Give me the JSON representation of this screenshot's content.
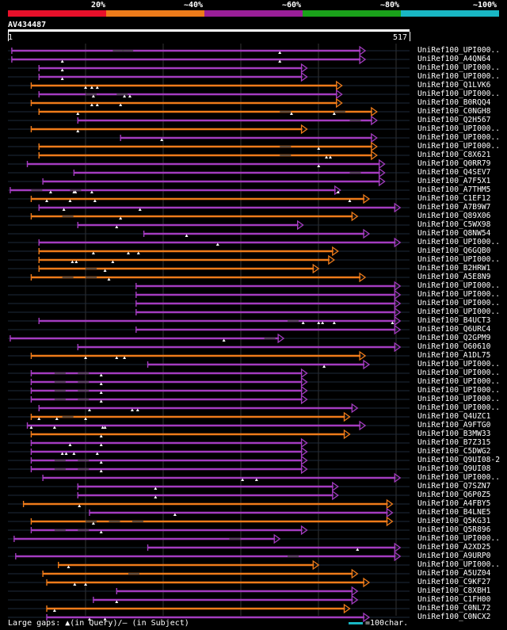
{
  "scale": {
    "labels": [
      "20%",
      "~40%",
      "~60%",
      "~80%",
      "~100%"
    ],
    "colors": [
      "#e8102a",
      "#ee7b1a",
      "#9a1f98",
      "#1aa21a",
      "#19b7c4"
    ]
  },
  "query": {
    "name": "AV434487",
    "start": "1",
    "end": "517",
    "length": 517
  },
  "colors": {
    "orange": "#ee7b1a",
    "purple": "#a43cc0",
    "gap_line": "#444444"
  },
  "hits": [
    {
      "label": "UniRef100_UPI000..",
      "start": 5,
      "end": 460,
      "color": "purple",
      "gaps": [
        135,
        147
      ],
      "marks": [
        350
      ]
    },
    {
      "label": "UniRef100_A4QN64",
      "start": 5,
      "end": 460,
      "color": "purple",
      "gaps": [],
      "marks": [
        70,
        350
      ]
    },
    {
      "label": "UniRef100_UPI000..",
      "start": 40,
      "end": 385,
      "color": "purple",
      "gaps": [],
      "marks": [
        70
      ]
    },
    {
      "label": "UniRef100_UPI000..",
      "start": 40,
      "end": 385,
      "color": "purple",
      "gaps": [],
      "marks": [
        70
      ]
    },
    {
      "label": "UniRef100_Q1LVK6",
      "start": 30,
      "end": 430,
      "color": "orange",
      "gaps": [],
      "marks": [
        100,
        108,
        115
      ]
    },
    {
      "label": "UniRef100_UPI000..",
      "start": 40,
      "end": 430,
      "color": "purple",
      "gaps": [
        100,
        140
      ],
      "marks": [
        110,
        150,
        157
      ]
    },
    {
      "label": "UniRef100_B0RQQ4",
      "start": 30,
      "end": 430,
      "color": "orange",
      "gaps": [],
      "marks": [
        108,
        115,
        145
      ]
    },
    {
      "label": "UniRef100_C0NGH8",
      "start": 40,
      "end": 475,
      "color": "orange",
      "gaps": [
        350,
        420
      ],
      "marks": [
        90,
        365,
        420
      ]
    },
    {
      "label": "UniRef100_Q2H567",
      "start": 90,
      "end": 475,
      "color": "purple",
      "gaps": [
        440
      ],
      "marks": []
    },
    {
      "label": "UniRef100_UPI000..",
      "start": 30,
      "end": 385,
      "color": "orange",
      "gaps": [],
      "marks": [
        90
      ]
    },
    {
      "label": "UniRef100_UPI000..",
      "start": 145,
      "end": 475,
      "color": "purple",
      "gaps": [],
      "marks": [
        198
      ]
    },
    {
      "label": "UniRef100_UPI000..",
      "start": 40,
      "end": 475,
      "color": "orange",
      "gaps": [
        350
      ],
      "marks": [
        400
      ]
    },
    {
      "label": "UniRef100_C8X621",
      "start": 40,
      "end": 475,
      "color": "orange",
      "gaps": [
        350
      ],
      "marks": [
        410,
        415
      ]
    },
    {
      "label": "UniRef100_Q0RR79",
      "start": 25,
      "end": 485,
      "color": "purple",
      "gaps": [],
      "marks": [
        400
      ]
    },
    {
      "label": "UniRef100_Q4SEV7",
      "start": 85,
      "end": 485,
      "color": "purple",
      "gaps": [
        440
      ],
      "marks": []
    },
    {
      "label": "UniRef100_A7F5X1",
      "start": 45,
      "end": 485,
      "color": "purple",
      "gaps": [],
      "marks": []
    },
    {
      "label": "UniRef100_A7THM5",
      "start": 3,
      "end": 428,
      "color": "purple",
      "gaps": [
        30,
        80
      ],
      "marks": [
        55,
        85,
        87,
        108,
        425
      ]
    },
    {
      "label": "UniRef100_C1EF12",
      "start": 30,
      "end": 465,
      "color": "orange",
      "gaps": [],
      "marks": [
        50,
        80,
        112,
        440
      ]
    },
    {
      "label": "UniRef100_A7B9W7",
      "start": 40,
      "end": 505,
      "color": "purple",
      "gaps": [],
      "marks": [
        72,
        170
      ]
    },
    {
      "label": "UniRef100_Q89X06",
      "start": 30,
      "end": 450,
      "color": "orange",
      "gaps": [
        70
      ],
      "marks": [
        145
      ]
    },
    {
      "label": "UniRef100_C5WX98",
      "start": 90,
      "end": 380,
      "color": "purple",
      "gaps": [],
      "marks": [
        140
      ]
    },
    {
      "label": "UniRef100_Q8NW54",
      "start": 175,
      "end": 465,
      "color": "purple",
      "gaps": [],
      "marks": [
        230
      ]
    },
    {
      "label": "UniRef100_UPI000..",
      "start": 40,
      "end": 505,
      "color": "purple",
      "gaps": [],
      "marks": [
        270
      ]
    },
    {
      "label": "UniRef100_Q6GQB0",
      "start": 40,
      "end": 425,
      "color": "orange",
      "gaps": [],
      "marks": [
        110,
        155,
        168
      ]
    },
    {
      "label": "UniRef100_UPI000..",
      "start": 40,
      "end": 420,
      "color": "orange",
      "gaps": [],
      "marks": [
        83,
        88,
        135
      ]
    },
    {
      "label": "UniRef100_B2HRW1",
      "start": 40,
      "end": 400,
      "color": "orange",
      "gaps": [
        100
      ],
      "marks": [
        125
      ]
    },
    {
      "label": "UniRef100_A5E8N9",
      "start": 30,
      "end": 460,
      "color": "orange",
      "gaps": [
        70,
        100
      ],
      "marks": [
        130
      ]
    },
    {
      "label": "UniRef100_UPI000..",
      "start": 165,
      "end": 505,
      "color": "purple",
      "gaps": [],
      "marks": []
    },
    {
      "label": "UniRef100_UPI000..",
      "start": 165,
      "end": 505,
      "color": "purple",
      "gaps": [],
      "marks": []
    },
    {
      "label": "UniRef100_UPI000..",
      "start": 165,
      "end": 505,
      "color": "purple",
      "gaps": [],
      "marks": []
    },
    {
      "label": "UniRef100_UPI000..",
      "start": 165,
      "end": 505,
      "color": "purple",
      "gaps": [],
      "marks": []
    },
    {
      "label": "UniRef100_B4UCT3",
      "start": 40,
      "end": 505,
      "color": "purple",
      "gaps": [
        360
      ],
      "marks": [
        380,
        400,
        405,
        420,
        495
      ]
    },
    {
      "label": "UniRef100_Q6URC4",
      "start": 165,
      "end": 505,
      "color": "purple",
      "gaps": [],
      "marks": []
    },
    {
      "label": "UniRef100_Q2GPM9",
      "start": 3,
      "end": 355,
      "color": "purple",
      "gaps": [
        330
      ],
      "marks": [
        278
      ]
    },
    {
      "label": "UniRef100_O60610",
      "start": 90,
      "end": 505,
      "color": "purple",
      "gaps": [],
      "marks": []
    },
    {
      "label": "UniRef100_A1DL75",
      "start": 30,
      "end": 460,
      "color": "orange",
      "gaps": [],
      "marks": [
        100,
        140,
        150
      ]
    },
    {
      "label": "UniRef100_UPI000..",
      "start": 180,
      "end": 465,
      "color": "purple",
      "gaps": [],
      "marks": [
        407
      ]
    },
    {
      "label": "UniRef100_UPI000..",
      "start": 30,
      "end": 385,
      "color": "purple",
      "gaps": [
        60,
        90
      ],
      "marks": [
        120
      ]
    },
    {
      "label": "UniRef100_UPI000..",
      "start": 30,
      "end": 385,
      "color": "purple",
      "gaps": [
        60,
        90
      ],
      "marks": [
        120
      ]
    },
    {
      "label": "UniRef100_UPI000..",
      "start": 30,
      "end": 385,
      "color": "purple",
      "gaps": [
        60,
        90
      ],
      "marks": [
        120
      ]
    },
    {
      "label": "UniRef100_UPI000..",
      "start": 30,
      "end": 385,
      "color": "purple",
      "gaps": [
        60,
        90
      ],
      "marks": [
        120
      ]
    },
    {
      "label": "UniRef100_UPI000..",
      "start": 40,
      "end": 450,
      "color": "purple",
      "gaps": [],
      "marks": [
        105,
        160,
        167
      ]
    },
    {
      "label": "UniRef100_Q4UZC1",
      "start": 30,
      "end": 440,
      "color": "orange",
      "gaps": [
        70
      ],
      "marks": [
        40,
        63,
        100
      ]
    },
    {
      "label": "UniRef100_A9FTG0",
      "start": 25,
      "end": 460,
      "color": "purple",
      "gaps": [],
      "marks": [
        30,
        60,
        122,
        125
      ]
    },
    {
      "label": "UniRef100_B3MW33",
      "start": 30,
      "end": 440,
      "color": "orange",
      "gaps": [],
      "marks": [
        120
      ]
    },
    {
      "label": "UniRef100_B7Z315",
      "start": 30,
      "end": 385,
      "color": "purple",
      "gaps": [],
      "marks": [
        80,
        120
      ]
    },
    {
      "label": "UniRef100_C5DWG2",
      "start": 30,
      "end": 385,
      "color": "purple",
      "gaps": [],
      "marks": [
        70,
        75,
        85,
        115
      ]
    },
    {
      "label": "UniRef100_Q9UI08-2",
      "start": 30,
      "end": 385,
      "color": "purple",
      "gaps": [
        60,
        90
      ],
      "marks": [
        120
      ]
    },
    {
      "label": "UniRef100_Q9UI08",
      "start": 30,
      "end": 385,
      "color": "purple",
      "gaps": [
        60,
        90
      ],
      "marks": [
        120
      ]
    },
    {
      "label": "UniRef100_UPI000..",
      "start": 45,
      "end": 505,
      "color": "purple",
      "gaps": [],
      "marks": [
        302,
        320
      ]
    },
    {
      "label": "UniRef100_Q7SZN7",
      "start": 90,
      "end": 425,
      "color": "purple",
      "gaps": [],
      "marks": [
        190
      ]
    },
    {
      "label": "UniRef100_Q6P0Z5",
      "start": 90,
      "end": 425,
      "color": "purple",
      "gaps": [],
      "marks": [
        190
      ]
    },
    {
      "label": "UniRef100_A4FBY5",
      "start": 20,
      "end": 495,
      "color": "orange",
      "gaps": [],
      "marks": [
        92
      ]
    },
    {
      "label": "UniRef100_B4LNE5",
      "start": 105,
      "end": 495,
      "color": "purple",
      "gaps": [],
      "marks": [
        215
      ]
    },
    {
      "label": "UniRef100_Q5KG31",
      "start": 30,
      "end": 495,
      "color": "orange",
      "gaps": [
        100,
        130,
        160
      ],
      "marks": [
        110
      ]
    },
    {
      "label": "UniRef100_Q5R896",
      "start": 30,
      "end": 385,
      "color": "purple",
      "gaps": [
        60,
        90
      ],
      "marks": [
        120
      ]
    },
    {
      "label": "UniRef100_UPI000..",
      "start": 8,
      "end": 350,
      "color": "purple",
      "gaps": [
        285
      ],
      "marks": []
    },
    {
      "label": "UniRef100_A2XD25",
      "start": 180,
      "end": 505,
      "color": "purple",
      "gaps": [],
      "marks": [
        450
      ]
    },
    {
      "label": "UniRef100_A9URP0",
      "start": 10,
      "end": 505,
      "color": "purple",
      "gaps": [
        360
      ],
      "marks": []
    },
    {
      "label": "UniRef100_UPI000..",
      "start": 65,
      "end": 400,
      "color": "orange",
      "gaps": [],
      "marks": [
        78
      ]
    },
    {
      "label": "UniRef100_A5UZ04",
      "start": 45,
      "end": 450,
      "color": "orange",
      "gaps": [
        155
      ],
      "marks": []
    },
    {
      "label": "UniRef100_C9KF27",
      "start": 50,
      "end": 465,
      "color": "orange",
      "gaps": [],
      "marks": [
        86,
        100
      ]
    },
    {
      "label": "UniRef100_C8XBH1",
      "start": 140,
      "end": 450,
      "color": "purple",
      "gaps": [],
      "marks": []
    },
    {
      "label": "UniRef100_C1FH00",
      "start": 110,
      "end": 450,
      "color": "purple",
      "gaps": [],
      "marks": [
        140
      ]
    },
    {
      "label": "UniRef100_C0NL72",
      "start": 50,
      "end": 440,
      "color": "orange",
      "gaps": [],
      "marks": [
        60
      ]
    },
    {
      "label": "UniRef100_C0NCX2",
      "start": 50,
      "end": 465,
      "color": "purple",
      "gaps": [],
      "marks": [
        105,
        125
      ]
    }
  ],
  "legend": {
    "text": "Large gaps: ▲(in Query)/– (in Subject)",
    "scale_text": "=100char."
  }
}
